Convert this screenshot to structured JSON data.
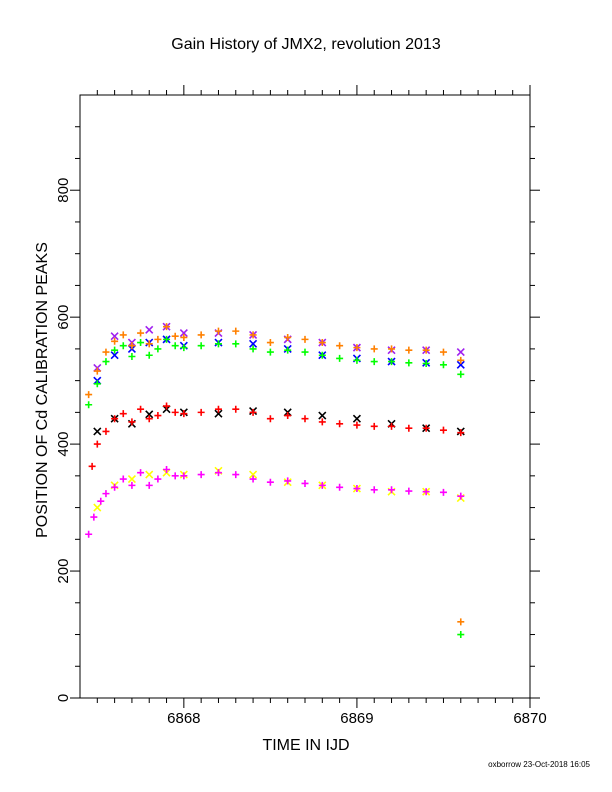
{
  "title": "Gain History of JMX2, revolution 2013",
  "footer": "oxborrow 23-Oct-2018 16:05",
  "colors": {
    "black": "#000000",
    "red": "#ff0000",
    "yellow": "#ffff00",
    "magenta": "#ff00ff",
    "blue": "#0000ff",
    "green": "#00ff00",
    "orange": "#ff8000",
    "purple": "#a020f0"
  },
  "chart_data": {
    "type": "scatter",
    "title": "Gain History of JMX2, revolution 2013",
    "xlabel": "TIME IN IJD",
    "ylabel": "POSITION OF Cd CALIBRATION PEAKS",
    "xlim": [
      6867.4,
      6870
    ],
    "ylim": [
      0,
      950
    ],
    "x_ticks": [
      6868,
      6869,
      6870
    ],
    "y_ticks": [
      0,
      200,
      400,
      600,
      800
    ],
    "grid": false,
    "series": [
      {
        "color": "#000000",
        "marker": "x",
        "points": [
          [
            6867.5,
            420
          ],
          [
            6867.6,
            440
          ],
          [
            6867.7,
            432
          ],
          [
            6867.8,
            447
          ],
          [
            6867.9,
            455
          ],
          [
            6868.0,
            450
          ],
          [
            6868.2,
            448
          ],
          [
            6868.4,
            452
          ],
          [
            6868.6,
            450
          ],
          [
            6868.8,
            445
          ],
          [
            6869.0,
            440
          ],
          [
            6869.2,
            432
          ],
          [
            6869.4,
            425
          ],
          [
            6869.6,
            420
          ]
        ]
      },
      {
        "color": "#ff0000",
        "marker": "+",
        "points": [
          [
            6867.47,
            365
          ],
          [
            6867.5,
            400
          ],
          [
            6867.55,
            420
          ],
          [
            6867.6,
            440
          ],
          [
            6867.65,
            448
          ],
          [
            6867.7,
            435
          ],
          [
            6867.75,
            455
          ],
          [
            6867.8,
            440
          ],
          [
            6867.85,
            445
          ],
          [
            6867.9,
            460
          ],
          [
            6867.95,
            450
          ],
          [
            6868.0,
            448
          ],
          [
            6868.1,
            450
          ],
          [
            6868.2,
            455
          ],
          [
            6868.3,
            455
          ],
          [
            6868.4,
            450
          ],
          [
            6868.5,
            440
          ],
          [
            6868.6,
            445
          ],
          [
            6868.7,
            440
          ],
          [
            6868.8,
            435
          ],
          [
            6868.9,
            432
          ],
          [
            6869.0,
            430
          ],
          [
            6869.1,
            428
          ],
          [
            6869.2,
            428
          ],
          [
            6869.3,
            425
          ],
          [
            6869.4,
            425
          ],
          [
            6869.5,
            422
          ],
          [
            6869.6,
            418
          ]
        ]
      },
      {
        "color": "#ffff00",
        "marker": "x",
        "points": [
          [
            6867.5,
            300
          ],
          [
            6867.6,
            335
          ],
          [
            6867.7,
            345
          ],
          [
            6867.8,
            352
          ],
          [
            6867.9,
            355
          ],
          [
            6868.0,
            352
          ],
          [
            6868.2,
            358
          ],
          [
            6868.4,
            352
          ],
          [
            6868.6,
            340
          ],
          [
            6868.8,
            335
          ],
          [
            6869.0,
            330
          ],
          [
            6869.2,
            325
          ],
          [
            6869.4,
            325
          ],
          [
            6869.6,
            315
          ]
        ]
      },
      {
        "color": "#ff00ff",
        "marker": "+",
        "points": [
          [
            6867.45,
            258
          ],
          [
            6867.48,
            285
          ],
          [
            6867.52,
            310
          ],
          [
            6867.55,
            322
          ],
          [
            6867.6,
            332
          ],
          [
            6867.65,
            345
          ],
          [
            6867.7,
            335
          ],
          [
            6867.75,
            355
          ],
          [
            6867.8,
            335
          ],
          [
            6867.85,
            345
          ],
          [
            6867.9,
            360
          ],
          [
            6867.95,
            350
          ],
          [
            6868.0,
            350
          ],
          [
            6868.1,
            352
          ],
          [
            6868.2,
            355
          ],
          [
            6868.3,
            352
          ],
          [
            6868.4,
            345
          ],
          [
            6868.5,
            340
          ],
          [
            6868.6,
            342
          ],
          [
            6868.7,
            338
          ],
          [
            6868.8,
            335
          ],
          [
            6868.9,
            332
          ],
          [
            6869.0,
            330
          ],
          [
            6869.1,
            328
          ],
          [
            6869.2,
            328
          ],
          [
            6869.3,
            326
          ],
          [
            6869.4,
            325
          ],
          [
            6869.5,
            324
          ],
          [
            6869.6,
            318
          ]
        ]
      },
      {
        "color": "#0000ff",
        "marker": "x",
        "points": [
          [
            6867.5,
            500
          ],
          [
            6867.6,
            540
          ],
          [
            6867.7,
            550
          ],
          [
            6867.8,
            560
          ],
          [
            6867.9,
            565
          ],
          [
            6868.0,
            555
          ],
          [
            6868.2,
            560
          ],
          [
            6868.4,
            558
          ],
          [
            6868.6,
            550
          ],
          [
            6868.8,
            540
          ],
          [
            6869.0,
            535
          ],
          [
            6869.2,
            530
          ],
          [
            6869.4,
            528
          ],
          [
            6869.6,
            525
          ]
        ]
      },
      {
        "color": "#00ff00",
        "marker": "+",
        "points": [
          [
            6867.45,
            462
          ],
          [
            6867.5,
            495
          ],
          [
            6867.55,
            530
          ],
          [
            6867.6,
            548
          ],
          [
            6867.65,
            555
          ],
          [
            6867.7,
            538
          ],
          [
            6867.75,
            560
          ],
          [
            6867.8,
            540
          ],
          [
            6867.85,
            550
          ],
          [
            6867.9,
            565
          ],
          [
            6867.95,
            555
          ],
          [
            6868.0,
            552
          ],
          [
            6868.1,
            555
          ],
          [
            6868.2,
            558
          ],
          [
            6868.3,
            558
          ],
          [
            6868.4,
            550
          ],
          [
            6868.5,
            545
          ],
          [
            6868.6,
            548
          ],
          [
            6868.7,
            545
          ],
          [
            6868.8,
            540
          ],
          [
            6868.9,
            535
          ],
          [
            6869.0,
            532
          ],
          [
            6869.1,
            530
          ],
          [
            6869.2,
            530
          ],
          [
            6869.3,
            528
          ],
          [
            6869.4,
            527
          ],
          [
            6869.5,
            525
          ],
          [
            6869.6,
            510
          ],
          [
            6869.6,
            100
          ]
        ]
      },
      {
        "color": "#a020f0",
        "marker": "x",
        "points": [
          [
            6867.5,
            520
          ],
          [
            6867.6,
            570
          ],
          [
            6867.7,
            560
          ],
          [
            6867.8,
            580
          ],
          [
            6867.9,
            585
          ],
          [
            6868.0,
            575
          ],
          [
            6868.2,
            575
          ],
          [
            6868.4,
            572
          ],
          [
            6868.6,
            565
          ],
          [
            6868.8,
            560
          ],
          [
            6869.0,
            552
          ],
          [
            6869.2,
            548
          ],
          [
            6869.4,
            548
          ],
          [
            6869.6,
            545
          ]
        ]
      },
      {
        "color": "#ff8000",
        "marker": "+",
        "points": [
          [
            6867.45,
            478
          ],
          [
            6867.5,
            515
          ],
          [
            6867.55,
            545
          ],
          [
            6867.6,
            562
          ],
          [
            6867.65,
            572
          ],
          [
            6867.7,
            555
          ],
          [
            6867.75,
            575
          ],
          [
            6867.8,
            558
          ],
          [
            6867.85,
            565
          ],
          [
            6867.9,
            585
          ],
          [
            6867.95,
            570
          ],
          [
            6868.0,
            568
          ],
          [
            6868.1,
            572
          ],
          [
            6868.2,
            578
          ],
          [
            6868.3,
            578
          ],
          [
            6868.4,
            572
          ],
          [
            6868.5,
            560
          ],
          [
            6868.6,
            568
          ],
          [
            6868.7,
            565
          ],
          [
            6868.8,
            560
          ],
          [
            6868.9,
            555
          ],
          [
            6869.0,
            552
          ],
          [
            6869.1,
            550
          ],
          [
            6869.2,
            550
          ],
          [
            6869.3,
            548
          ],
          [
            6869.4,
            548
          ],
          [
            6869.5,
            545
          ],
          [
            6869.6,
            532
          ],
          [
            6869.6,
            120
          ]
        ]
      }
    ]
  }
}
